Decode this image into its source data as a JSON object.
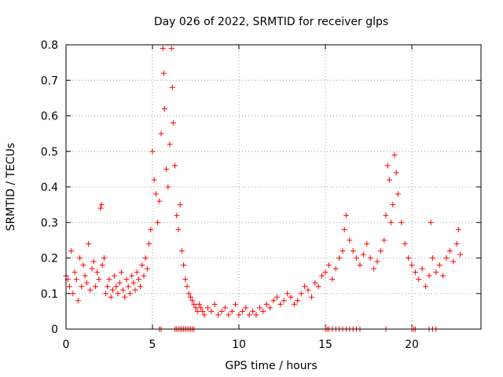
{
  "chart_data": {
    "type": "scatter",
    "title": "Day 026 of 2022, SRMTID for receiver glps",
    "xlabel": "GPS time / hours",
    "ylabel": "SRMTID / TECUs",
    "xlim": [
      0,
      24
    ],
    "ylim": [
      0,
      0.8
    ],
    "xticks": [
      0,
      5,
      10,
      15,
      20
    ],
    "yticks": [
      0,
      0.1,
      0.2,
      0.3,
      0.4,
      0.5,
      0.6,
      0.7,
      0.8
    ],
    "xtick_labels": [
      "0",
      "5",
      "10",
      "15",
      "20"
    ],
    "ytick_labels": [
      "0",
      "0.1",
      "0.2",
      "0.3",
      "0.4",
      "0.5",
      "0.6",
      "0.7",
      "0.8"
    ],
    "grid": true,
    "marker": "+",
    "series_color": "#ff0000",
    "series": [
      {
        "name": "SRMTID",
        "x": [
          0.0,
          0.1,
          0.2,
          0.3,
          0.4,
          0.5,
          0.6,
          0.7,
          0.8,
          0.9,
          1.0,
          1.1,
          1.2,
          1.3,
          1.4,
          1.5,
          1.6,
          1.7,
          1.8,
          1.9,
          2.0,
          2.05,
          2.1,
          2.2,
          2.3,
          2.4,
          2.5,
          2.6,
          2.7,
          2.8,
          2.9,
          3.0,
          3.1,
          3.2,
          3.3,
          3.4,
          3.5,
          3.6,
          3.7,
          3.8,
          3.9,
          4.0,
          4.1,
          4.2,
          4.3,
          4.4,
          4.5,
          4.6,
          4.7,
          4.8,
          4.9,
          5.0,
          5.1,
          5.2,
          5.3,
          5.4,
          5.5,
          5.6,
          5.65,
          5.7,
          5.8,
          5.9,
          6.0,
          6.1,
          6.15,
          6.2,
          6.3,
          6.4,
          6.5,
          6.6,
          6.7,
          6.8,
          6.9,
          7.0,
          7.1,
          7.2,
          7.3,
          7.4,
          7.5,
          7.6,
          7.7,
          7.8,
          7.9,
          8.0,
          8.2,
          8.4,
          8.6,
          8.8,
          9.0,
          9.2,
          9.4,
          9.6,
          9.8,
          10.0,
          10.2,
          10.4,
          10.6,
          10.8,
          11.0,
          11.2,
          11.4,
          11.6,
          11.8,
          12.0,
          12.2,
          12.4,
          12.6,
          12.8,
          13.0,
          13.2,
          13.4,
          13.6,
          13.8,
          14.0,
          14.2,
          14.4,
          14.6,
          14.8,
          15.0,
          15.2,
          15.4,
          15.6,
          15.8,
          16.0,
          16.1,
          16.2,
          16.4,
          16.6,
          16.8,
          17.0,
          17.2,
          17.4,
          17.6,
          17.8,
          18.0,
          18.2,
          18.4,
          18.5,
          18.6,
          18.7,
          18.8,
          18.9,
          19.0,
          19.1,
          19.2,
          19.4,
          19.6,
          19.8,
          20.0,
          20.2,
          20.4,
          20.6,
          20.8,
          21.0,
          21.1,
          21.2,
          21.4,
          21.6,
          21.8,
          22.0,
          22.2,
          22.4,
          22.6,
          22.7,
          22.8
        ],
        "y": [
          0.15,
          0.14,
          0.12,
          0.22,
          0.1,
          0.16,
          0.14,
          0.08,
          0.2,
          0.12,
          0.18,
          0.15,
          0.13,
          0.24,
          0.11,
          0.17,
          0.19,
          0.12,
          0.16,
          0.14,
          0.34,
          0.35,
          0.18,
          0.2,
          0.1,
          0.12,
          0.14,
          0.09,
          0.11,
          0.15,
          0.12,
          0.1,
          0.13,
          0.16,
          0.11,
          0.09,
          0.14,
          0.12,
          0.1,
          0.15,
          0.13,
          0.11,
          0.16,
          0.14,
          0.12,
          0.18,
          0.15,
          0.2,
          0.17,
          0.24,
          0.28,
          0.5,
          0.42,
          0.38,
          0.3,
          0.36,
          0.55,
          0.79,
          0.72,
          0.62,
          0.45,
          0.4,
          0.52,
          0.79,
          0.68,
          0.58,
          0.46,
          0.32,
          0.28,
          0.35,
          0.22,
          0.18,
          0.14,
          0.12,
          0.1,
          0.09,
          0.08,
          0.07,
          0.06,
          0.05,
          0.07,
          0.06,
          0.05,
          0.04,
          0.06,
          0.05,
          0.07,
          0.04,
          0.05,
          0.06,
          0.04,
          0.05,
          0.07,
          0.04,
          0.05,
          0.06,
          0.04,
          0.05,
          0.04,
          0.06,
          0.05,
          0.07,
          0.06,
          0.08,
          0.09,
          0.07,
          0.08,
          0.1,
          0.09,
          0.07,
          0.08,
          0.1,
          0.12,
          0.11,
          0.09,
          0.13,
          0.12,
          0.15,
          0.16,
          0.18,
          0.14,
          0.17,
          0.2,
          0.22,
          0.28,
          0.32,
          0.25,
          0.22,
          0.2,
          0.18,
          0.21,
          0.24,
          0.2,
          0.17,
          0.19,
          0.22,
          0.25,
          0.32,
          0.46,
          0.42,
          0.3,
          0.35,
          0.49,
          0.44,
          0.38,
          0.3,
          0.24,
          0.2,
          0.18,
          0.16,
          0.14,
          0.17,
          0.12,
          0.15,
          0.3,
          0.2,
          0.16,
          0.18,
          0.15,
          0.2,
          0.22,
          0.19,
          0.24,
          0.28,
          0.21
        ]
      }
    ],
    "event_markers": [
      5.4,
      5.5,
      6.3,
      6.4,
      6.5,
      6.6,
      6.7,
      6.8,
      6.9,
      7.0,
      7.1,
      7.2,
      7.3,
      7.4,
      15.0,
      15.1,
      15.2,
      15.4,
      15.6,
      15.8,
      16.0,
      16.2,
      16.4,
      16.6,
      16.8,
      17.0,
      18.5,
      20.0,
      20.1,
      20.2,
      21.0,
      21.2,
      21.4
    ]
  }
}
